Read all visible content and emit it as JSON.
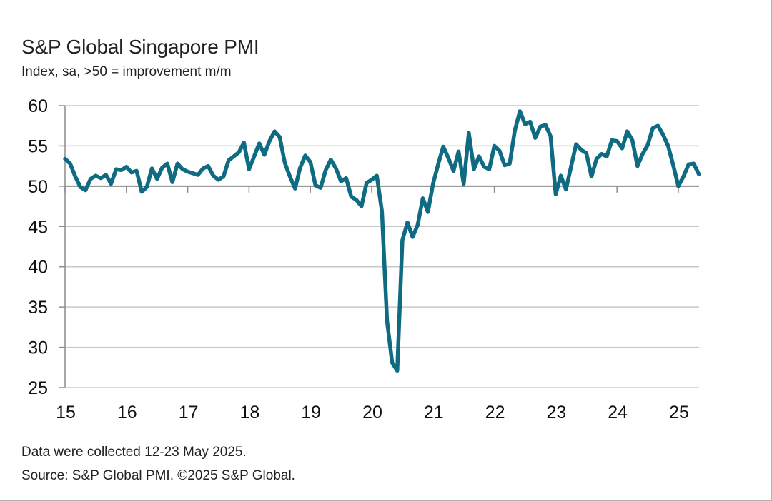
{
  "header": {
    "title": "S&P Global Singapore PMI",
    "subtitle": "Index, sa, >50 = improvement m/m"
  },
  "footer": {
    "note": "Data were collected 12-23 May 2025.",
    "source": "Source: S&P Global PMI. ©2025 S&P Global."
  },
  "colors": {
    "line": "#0f6b82",
    "grid": "#c8c8c8",
    "axis": "#8c8c8c",
    "baseline": "#8c8c8c"
  },
  "chart_data": {
    "type": "line",
    "title": "S&P Global Singapore PMI",
    "subtitle": "Index, sa, >50 = improvement m/m",
    "xlabel": "",
    "ylabel": "",
    "ylim": [
      25,
      60
    ],
    "yticks": [
      25,
      30,
      35,
      40,
      45,
      50,
      55,
      60
    ],
    "xticks": [
      "15",
      "16",
      "17",
      "18",
      "19",
      "20",
      "21",
      "22",
      "23",
      "24",
      "25"
    ],
    "x_start": "2015-01",
    "x_end": "2025-05",
    "frequency": "monthly",
    "grid": true,
    "reference_line": 50,
    "legend": "none",
    "series": [
      {
        "name": "Singapore PMI",
        "values": [
          53.4,
          52.8,
          51.2,
          49.9,
          49.5,
          50.9,
          51.3,
          51.0,
          51.4,
          50.3,
          52.1,
          52.0,
          52.4,
          51.7,
          51.9,
          49.3,
          49.9,
          52.2,
          50.9,
          52.3,
          52.8,
          50.5,
          52.8,
          52.1,
          51.8,
          51.6,
          51.4,
          52.2,
          52.5,
          51.3,
          50.8,
          51.2,
          53.2,
          53.7,
          54.2,
          55.4,
          52.1,
          53.7,
          55.3,
          53.9,
          55.6,
          56.8,
          56.1,
          52.9,
          51.2,
          49.7,
          52.3,
          53.8,
          53.0,
          50.1,
          49.8,
          52.0,
          53.3,
          52.2,
          50.6,
          51.0,
          48.7,
          48.3,
          47.5,
          50.4,
          50.8,
          51.3,
          46.9,
          33.3,
          28.1,
          27.1,
          43.3,
          45.5,
          43.7,
          45.2,
          48.5,
          46.8,
          50.3,
          52.7,
          54.9,
          53.5,
          51.9,
          54.3,
          50.3,
          56.6,
          52.1,
          53.7,
          52.4,
          52.1,
          55.0,
          54.4,
          52.6,
          52.8,
          56.9,
          59.3,
          57.7,
          58.0,
          56.0,
          57.4,
          57.6,
          56.2,
          49.0,
          51.3,
          49.6,
          52.4,
          55.2,
          54.5,
          54.1,
          51.2,
          53.4,
          54.0,
          53.7,
          55.7,
          55.6,
          54.7,
          56.8,
          55.7,
          52.5,
          54.0,
          55.1,
          57.2,
          57.5,
          56.4,
          55.0,
          52.6,
          50.0,
          51.2,
          52.7,
          52.8,
          51.5
        ]
      }
    ]
  }
}
